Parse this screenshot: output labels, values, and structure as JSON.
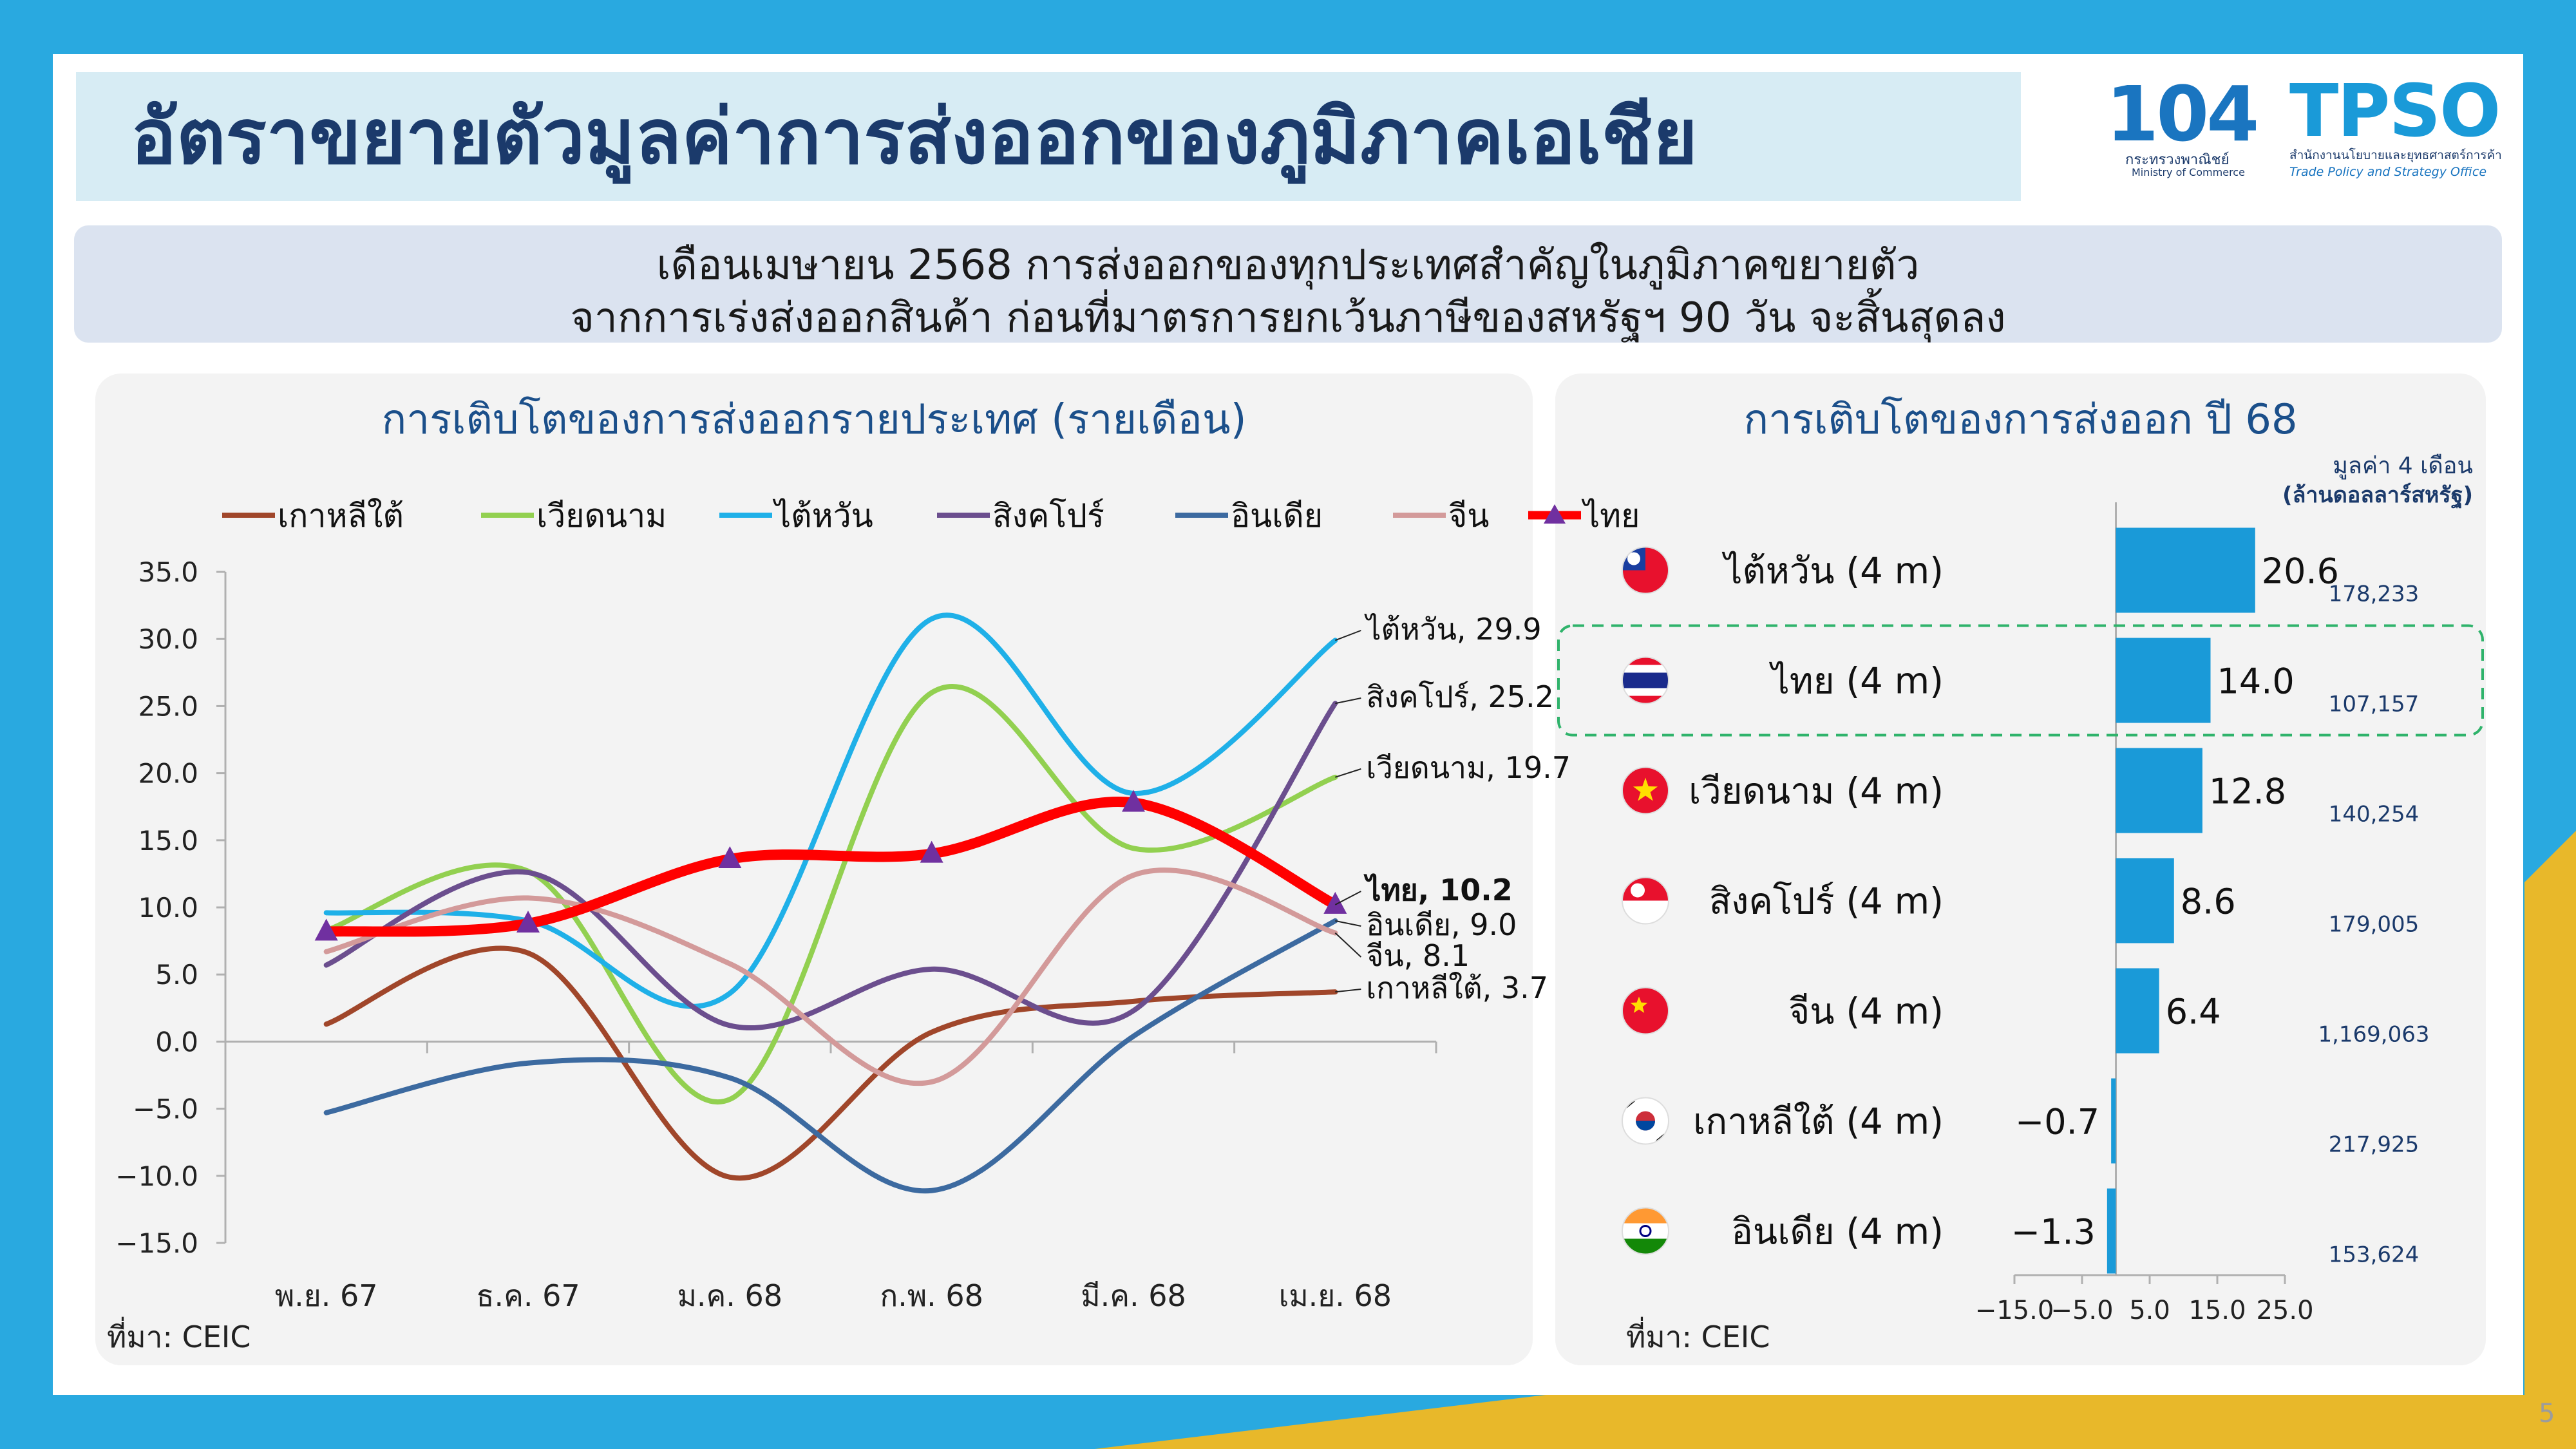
{
  "title": "อัตราขยายตัวมูลค่าการส่งออกของภูมิภาคเอเชีย",
  "logos": {
    "moc_number": "104",
    "moc_name_th": "กระทรวงพาณิชย์",
    "moc_name_en": "Ministry of Commerce",
    "tpso_name": "TPSO",
    "tpso_name_th": "สำนักงานนโยบายและยุทธศาสตร์การค้า",
    "tpso_name_en": "Trade Policy and Strategy Office"
  },
  "subtitle": {
    "line1": "เดือนเมษายน 2568 การส่งออกของทุกประเทศสำคัญในภูมิภาคขยายตัว",
    "line2": "จากการเร่งส่งออกสินค้า ก่อนที่มาตรการยกเว้นภาษีของสหรัฐฯ 90 วัน จะสิ้นสุดลง"
  },
  "colors": {
    "background": "#29a9e0",
    "accent_yellow": "#e8b82a",
    "title_text": "#1b3a6b",
    "panel_title": "#1b4f8a",
    "bar": "#1a9ad8",
    "highlight_border": "#2fb36b",
    "thailand_line": "#ff0000",
    "thailand_marker": "#7030a0"
  },
  "source_label": "ที่มา: CEIC",
  "page_number": "5",
  "chart_data": [
    {
      "type": "line",
      "title": "การเติบโตของการส่งออกรายประเทศ (รายเดือน)",
      "categories": [
        "พ.ย. 67",
        "ธ.ค. 67",
        "ม.ค. 68",
        "ก.พ. 68",
        "มี.ค. 68",
        "เม.ย. 68"
      ],
      "ylim": [
        -15,
        35
      ],
      "yticks": [
        "35.0",
        "30.0",
        "25.0",
        "20.0",
        "15.0",
        "10.0",
        "5.0",
        "0.0",
        "−5.0",
        "−10.0",
        "−15.0"
      ],
      "series": [
        {
          "name": "เกาหลีใต้",
          "color": "#a0462a",
          "values": [
            1.3,
            6.6,
            -10.1,
            0.7,
            3.0,
            3.7
          ],
          "end_label": "เกาหลีใต้, 3.7"
        },
        {
          "name": "เวียดนาม",
          "color": "#92d050",
          "values": [
            8.3,
            12.7,
            -4.3,
            26.0,
            14.4,
            19.7
          ],
          "end_label": "เวียดนาม, 19.7"
        },
        {
          "name": "ไต้หวัน",
          "color": "#1fb0e8",
          "values": [
            9.6,
            9.0,
            3.6,
            31.5,
            18.5,
            29.9
          ],
          "end_label": "ไต้หวัน, 29.9"
        },
        {
          "name": "สิงคโปร์",
          "color": "#6b4e8e",
          "values": [
            5.7,
            12.6,
            1.2,
            5.4,
            2.3,
            25.2
          ],
          "end_label": "สิงคโปร์, 25.2"
        },
        {
          "name": "อินเดีย",
          "color": "#3c6aa0",
          "values": [
            -5.3,
            -1.6,
            -2.7,
            -11.1,
            0.4,
            9.0
          ],
          "end_label": "อินเดีย, 9.0"
        },
        {
          "name": "จีน",
          "color": "#d39a9a",
          "values": [
            6.7,
            10.7,
            5.8,
            -3.0,
            12.4,
            8.1
          ],
          "end_label": "จีน, 8.1"
        },
        {
          "name": "ไทย",
          "color": "#ff0000",
          "marker_color": "#7030a0",
          "values": [
            8.2,
            8.8,
            13.6,
            14.0,
            17.8,
            10.2
          ],
          "end_label": "ไทย, 10.2"
        }
      ]
    },
    {
      "type": "bar",
      "orientation": "horizontal",
      "title": "การเติบโตของการส่งออก ปี 68",
      "value_header_line1": "มูลค่า 4 เดือน",
      "value_header_line2": "(ล้านดอลลาร์สหรัฐ)",
      "xlim": [
        -15,
        25
      ],
      "xticks": [
        "−15.0",
        "−5.0",
        "5.0",
        "15.0",
        "25.0"
      ],
      "categories": [
        "ไต้หวัน (4 m)",
        "ไทย (4 m)",
        "เวียดนาม (4 m)",
        "สิงคโปร์ (4 m)",
        "จีน (4 m)",
        "เกาหลีใต้ (4 m)",
        "อินเดีย (4 m)"
      ],
      "flags": [
        "taiwan-flag",
        "thailand-flag",
        "vietnam-flag",
        "singapore-flag",
        "china-flag",
        "south-korea-flag",
        "india-flag"
      ],
      "values": [
        20.6,
        14.0,
        12.8,
        8.6,
        6.4,
        -0.7,
        -1.3
      ],
      "value_labels": [
        "20.6",
        "14.0",
        "12.8",
        "8.6",
        "6.4",
        "−0.7",
        "−1.3"
      ],
      "export_values": [
        "178,233",
        "107,157",
        "140,254",
        "179,005",
        "1,169,063",
        "217,925",
        "153,624"
      ],
      "highlight": "ไทย (4 m)"
    }
  ]
}
